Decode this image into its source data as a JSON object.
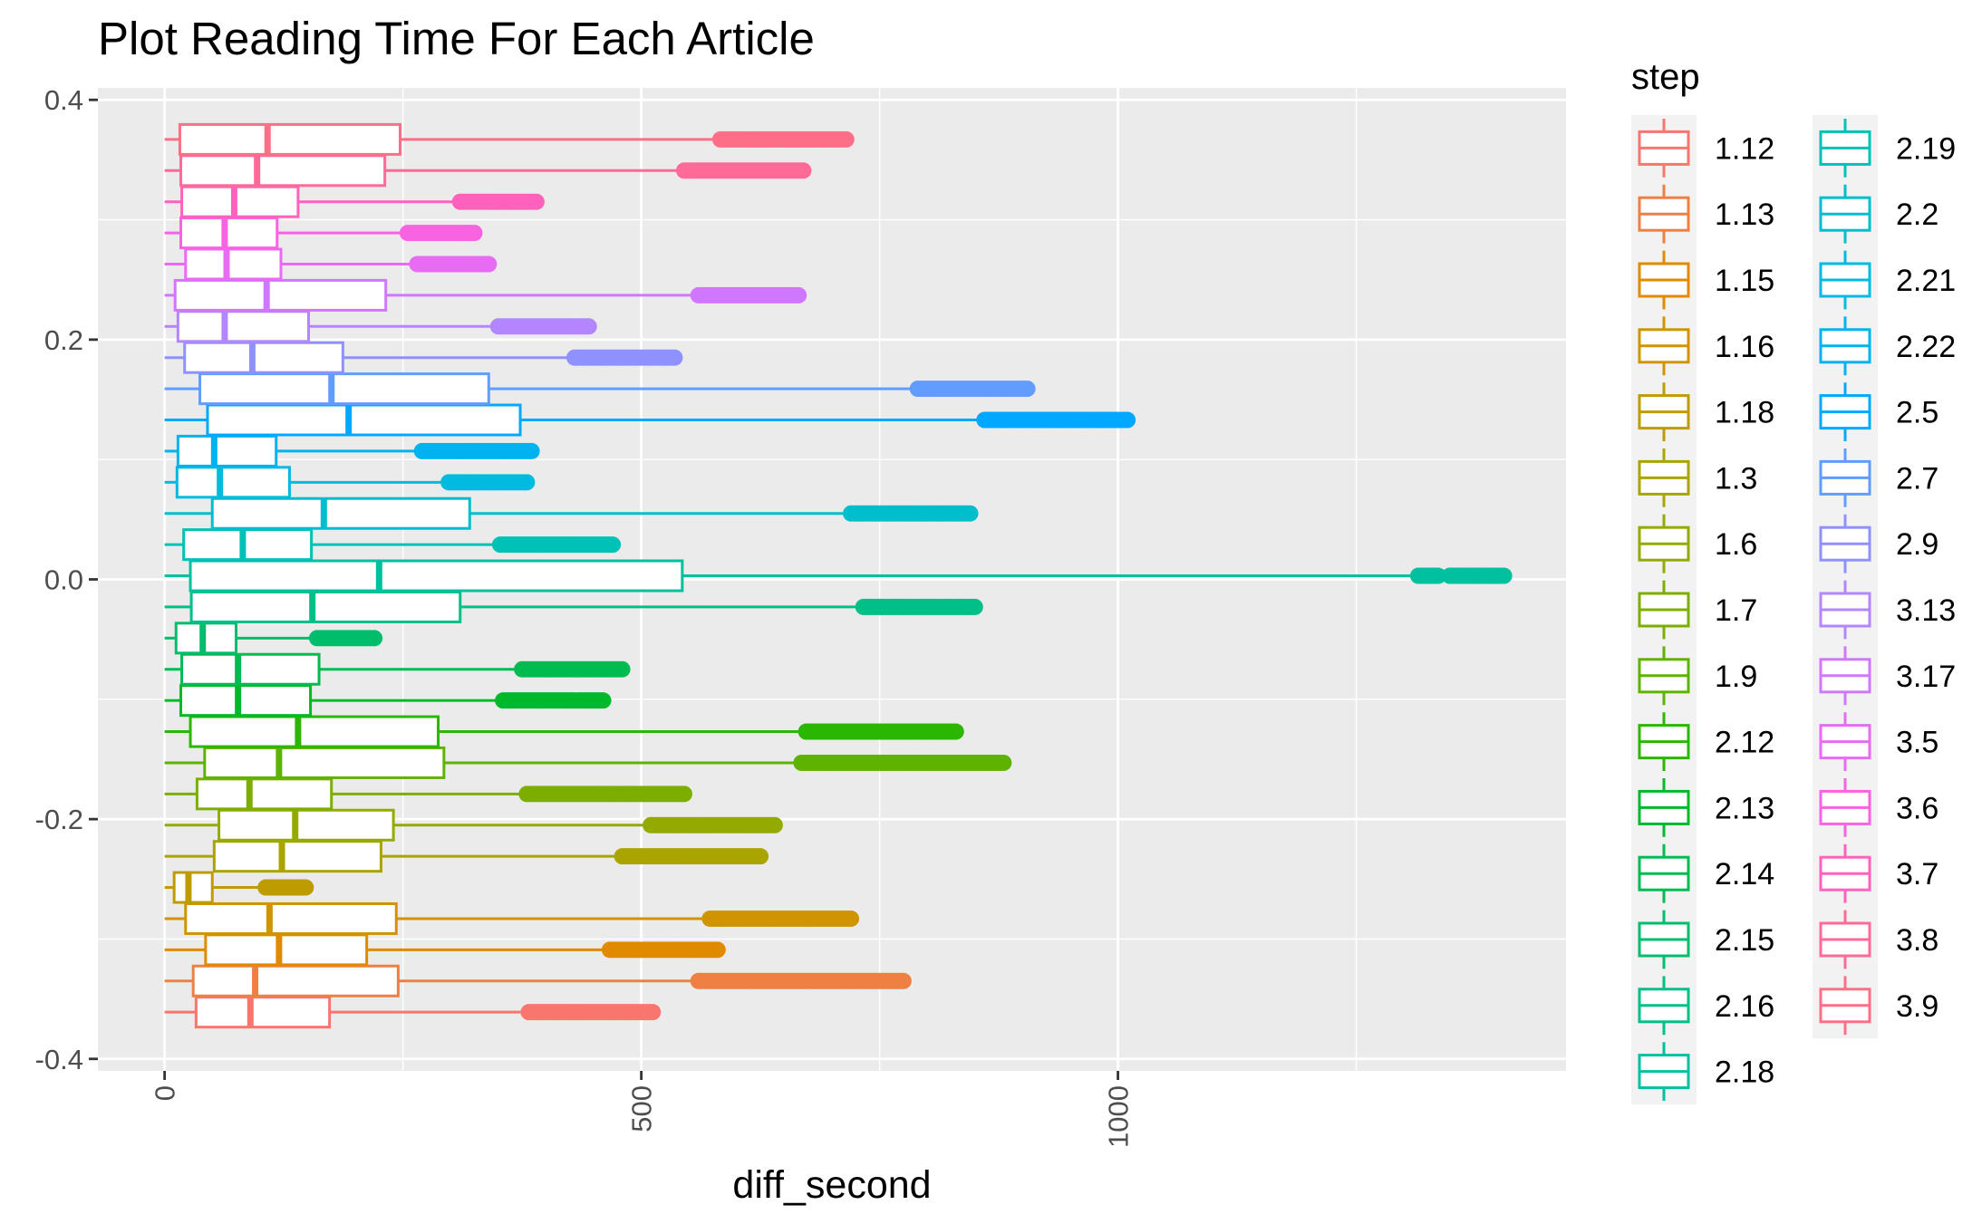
{
  "chart_data": {
    "type": "boxplot",
    "title": "Plot Reading Time For Each Article",
    "xlabel": "diff_second",
    "ylabel": "",
    "xlim": [
      -70,
      1470
    ],
    "ylim": [
      -0.41,
      0.41
    ],
    "x_ticks": [
      0,
      500,
      1000
    ],
    "x_tick_labels": [
      "0",
      "500",
      "1000"
    ],
    "y_ticks": [
      0.4,
      0.2,
      0.0,
      -0.2,
      -0.4
    ],
    "y_tick_labels": [
      "0.4",
      "0.2",
      "0.0",
      "-0.2",
      "-0.4"
    ],
    "grid": true,
    "legend": {
      "title": "step",
      "position": "right",
      "columns": 2
    },
    "series": [
      {
        "name": "1.12",
        "color": "#F8766D",
        "y": -0.361,
        "whisker_low": 0,
        "q1": 33,
        "median": 90,
        "q3": 173,
        "whisker_high": 382,
        "outlier_min": 382,
        "outlier_max": 512
      },
      {
        "name": "1.13",
        "color": "#EE8044",
        "y": -0.335,
        "whisker_low": 0,
        "q1": 30,
        "median": 95,
        "q3": 245,
        "whisker_high": 560,
        "outlier_min": 560,
        "outlier_max": 775
      },
      {
        "name": "1.15",
        "color": "#E08A00",
        "y": -0.309,
        "whisker_low": 0,
        "q1": 43,
        "median": 120,
        "q3": 212,
        "whisker_high": 467,
        "outlier_min": 467,
        "outlier_max": 580
      },
      {
        "name": "1.16",
        "color": "#D09400",
        "y": -0.283,
        "whisker_low": 0,
        "q1": 22,
        "median": 110,
        "q3": 243,
        "whisker_high": 572,
        "outlier_min": 572,
        "outlier_max": 720
      },
      {
        "name": "1.18",
        "color": "#BE9C00",
        "y": -0.257,
        "whisker_low": 0,
        "q1": 10,
        "median": 25,
        "q3": 50,
        "whisker_high": 106,
        "outlier_min": 106,
        "outlier_max": 148
      },
      {
        "name": "1.3",
        "color": "#AAA400",
        "y": -0.231,
        "whisker_low": 0,
        "q1": 52,
        "median": 123,
        "q3": 227,
        "whisker_high": 480,
        "outlier_min": 480,
        "outlier_max": 625
      },
      {
        "name": "1.6",
        "color": "#95AA00",
        "y": -0.205,
        "whisker_low": 0,
        "q1": 57,
        "median": 137,
        "q3": 240,
        "whisker_high": 510,
        "outlier_min": 510,
        "outlier_max": 640
      },
      {
        "name": "1.7",
        "color": "#7CAE00",
        "y": -0.179,
        "whisker_low": 0,
        "q1": 34,
        "median": 89,
        "q3": 175,
        "whisker_high": 380,
        "outlier_min": 380,
        "outlier_max": 545
      },
      {
        "name": "1.9",
        "color": "#5EB300",
        "y": -0.153,
        "whisker_low": 0,
        "q1": 42,
        "median": 120,
        "q3": 293,
        "whisker_high": 668,
        "outlier_min": 668,
        "outlier_max": 880
      },
      {
        "name": "2.12",
        "color": "#2BB600",
        "y": -0.127,
        "whisker_low": 0,
        "q1": 27,
        "median": 140,
        "q3": 287,
        "whisker_high": 673,
        "outlier_min": 673,
        "outlier_max": 830
      },
      {
        "name": "2.13",
        "color": "#00B92B",
        "y": -0.101,
        "whisker_low": 0,
        "q1": 17,
        "median": 77,
        "q3": 153,
        "whisker_high": 355,
        "outlier_min": 355,
        "outlier_max": 460
      },
      {
        "name": "2.14",
        "color": "#00BB4F",
        "y": -0.075,
        "whisker_low": 0,
        "q1": 18,
        "median": 77,
        "q3": 162,
        "whisker_high": 375,
        "outlier_min": 375,
        "outlier_max": 480
      },
      {
        "name": "2.15",
        "color": "#00BD6C",
        "y": -0.049,
        "whisker_low": 0,
        "q1": 12,
        "median": 40,
        "q3": 75,
        "whisker_high": 160,
        "outlier_min": 160,
        "outlier_max": 220
      },
      {
        "name": "2.16",
        "color": "#00BF87",
        "y": -0.023,
        "whisker_low": 0,
        "q1": 28,
        "median": 155,
        "q3": 310,
        "whisker_high": 733,
        "outlier_min": 733,
        "outlier_max": 850
      },
      {
        "name": "2.18",
        "color": "#00C0A0",
        "y": 0.003,
        "whisker_low": 0,
        "q1": 27,
        "median": 225,
        "q3": 543,
        "whisker_high": 1315,
        "outlier_min": 1315,
        "outlier_max": 1405
      },
      {
        "name": "2.19",
        "color": "#00C1B6",
        "y": 0.029,
        "whisker_low": 0,
        "q1": 20,
        "median": 82,
        "q3": 154,
        "whisker_high": 352,
        "outlier_min": 352,
        "outlier_max": 470
      },
      {
        "name": "2.2",
        "color": "#00BECB",
        "y": 0.055,
        "whisker_low": 0,
        "q1": 50,
        "median": 167,
        "q3": 320,
        "whisker_high": 720,
        "outlier_min": 720,
        "outlier_max": 845
      },
      {
        "name": "2.21",
        "color": "#00BAE0",
        "y": 0.081,
        "whisker_low": 0,
        "q1": 13,
        "median": 58,
        "q3": 131,
        "whisker_high": 298,
        "outlier_min": 298,
        "outlier_max": 380
      },
      {
        "name": "2.22",
        "color": "#00B3F0",
        "y": 0.107,
        "whisker_low": 0,
        "q1": 14,
        "median": 52,
        "q3": 117,
        "whisker_high": 270,
        "outlier_min": 270,
        "outlier_max": 385
      },
      {
        "name": "2.5",
        "color": "#00A9FF",
        "y": 0.133,
        "whisker_low": 0,
        "q1": 45,
        "median": 193,
        "q3": 373,
        "whisker_high": 860,
        "outlier_min": 860,
        "outlier_max": 1010
      },
      {
        "name": "2.7",
        "color": "#619CFF",
        "y": 0.159,
        "whisker_low": 0,
        "q1": 37,
        "median": 175,
        "q3": 340,
        "whisker_high": 790,
        "outlier_min": 790,
        "outlier_max": 905
      },
      {
        "name": "2.9",
        "color": "#8F91FF",
        "y": 0.185,
        "whisker_low": 0,
        "q1": 21,
        "median": 92,
        "q3": 187,
        "whisker_high": 430,
        "outlier_min": 430,
        "outlier_max": 535
      },
      {
        "name": "3.13",
        "color": "#B385FF",
        "y": 0.211,
        "whisker_low": 0,
        "q1": 14,
        "median": 63,
        "q3": 151,
        "whisker_high": 350,
        "outlier_min": 350,
        "outlier_max": 445
      },
      {
        "name": "3.17",
        "color": "#D077FF",
        "y": 0.237,
        "whisker_low": 0,
        "q1": 11,
        "median": 107,
        "q3": 232,
        "whisker_high": 560,
        "outlier_min": 560,
        "outlier_max": 665
      },
      {
        "name": "3.5",
        "color": "#E76BF3",
        "y": 0.263,
        "whisker_low": 0,
        "q1": 22,
        "median": 65,
        "q3": 122,
        "whisker_high": 265,
        "outlier_min": 265,
        "outlier_max": 340
      },
      {
        "name": "3.6",
        "color": "#F763E0",
        "y": 0.289,
        "whisker_low": 0,
        "q1": 17,
        "median": 63,
        "q3": 118,
        "whisker_high": 255,
        "outlier_min": 255,
        "outlier_max": 325
      },
      {
        "name": "3.7",
        "color": "#FF62BC",
        "y": 0.315,
        "whisker_low": 0,
        "q1": 18,
        "median": 73,
        "q3": 140,
        "whisker_high": 310,
        "outlier_min": 310,
        "outlier_max": 390
      },
      {
        "name": "3.8",
        "color": "#FF6A98",
        "y": 0.341,
        "whisker_low": 0,
        "q1": 17,
        "median": 97,
        "q3": 231,
        "whisker_high": 545,
        "outlier_min": 545,
        "outlier_max": 670
      },
      {
        "name": "3.9",
        "color": "#FD6F86",
        "y": 0.367,
        "whisker_low": 0,
        "q1": 16,
        "median": 108,
        "q3": 247,
        "whisker_high": 583,
        "outlier_min": 583,
        "outlier_max": 715
      }
    ]
  }
}
